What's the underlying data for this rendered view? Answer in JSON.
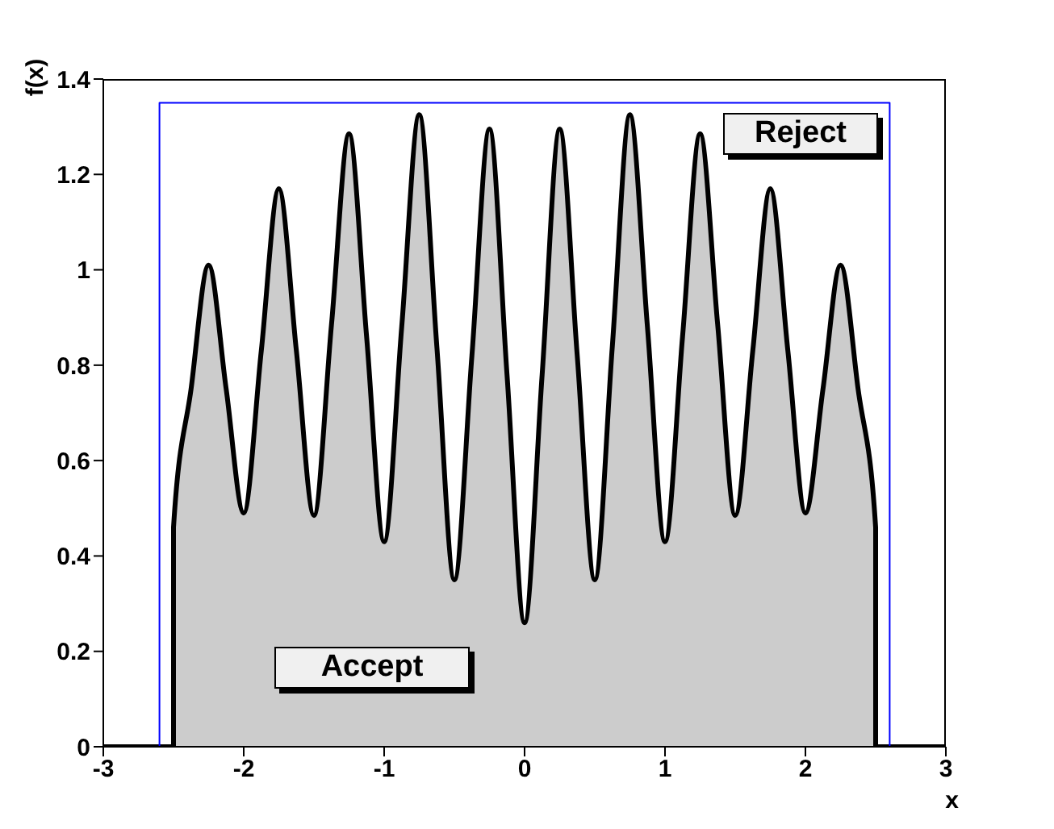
{
  "chart_data": {
    "type": "area",
    "xlabel": "x",
    "ylabel": "f(x)",
    "marker": "none",
    "xlim": [
      -3,
      3
    ],
    "xticks": [
      -3,
      -2,
      -1,
      0,
      1,
      2,
      3
    ],
    "ylim": [
      0,
      1.4
    ],
    "yticks": [
      0,
      0.2,
      0.4,
      0.6,
      0.8,
      1,
      1.2,
      1.4
    ],
    "annotations": [
      "Reject",
      "Accept"
    ],
    "series": [
      {
        "color": "#cccccc",
        "x": [
          -3,
          -2.5,
          -2.5,
          -2.375,
          -2.25,
          -2.125,
          -2,
          -1.875,
          -1.75,
          -1.625,
          -1.5,
          -1.375,
          -1.25,
          -1.125,
          -1,
          -0.875,
          -0.75,
          -0.625,
          -0.5,
          -0.375,
          -0.25,
          -0.125,
          0,
          0.125,
          0.25,
          0.375,
          0.5,
          0.625,
          0.75,
          0.875,
          1,
          1.125,
          1.25,
          1.375,
          1.5,
          1.625,
          1.75,
          1.875,
          2,
          2.125,
          2.25,
          2.375,
          2.5,
          2.5,
          3
        ],
        "values": [
          0,
          0,
          0.46,
          0.75,
          1.01,
          0.75,
          0.49,
          0.83,
          1.17,
          0.83,
          0.485,
          0.885,
          1.285,
          0.86,
          0.43,
          0.88,
          1.325,
          0.84,
          0.35,
          0.82,
          1.295,
          0.78,
          0.26,
          0.78,
          1.295,
          0.82,
          0.35,
          0.84,
          1.325,
          0.88,
          0.43,
          0.86,
          1.285,
          0.885,
          0.485,
          0.83,
          1.17,
          0.83,
          0.49,
          0.75,
          1.01,
          0.75,
          0.46,
          0,
          0
        ]
      },
      {
        "type": "line",
        "color": "#0000ff",
        "x": [
          -2.6,
          -2.6,
          2.6,
          2.6
        ],
        "values": [
          0,
          1.35,
          1.35,
          0
        ]
      }
    ]
  }
}
